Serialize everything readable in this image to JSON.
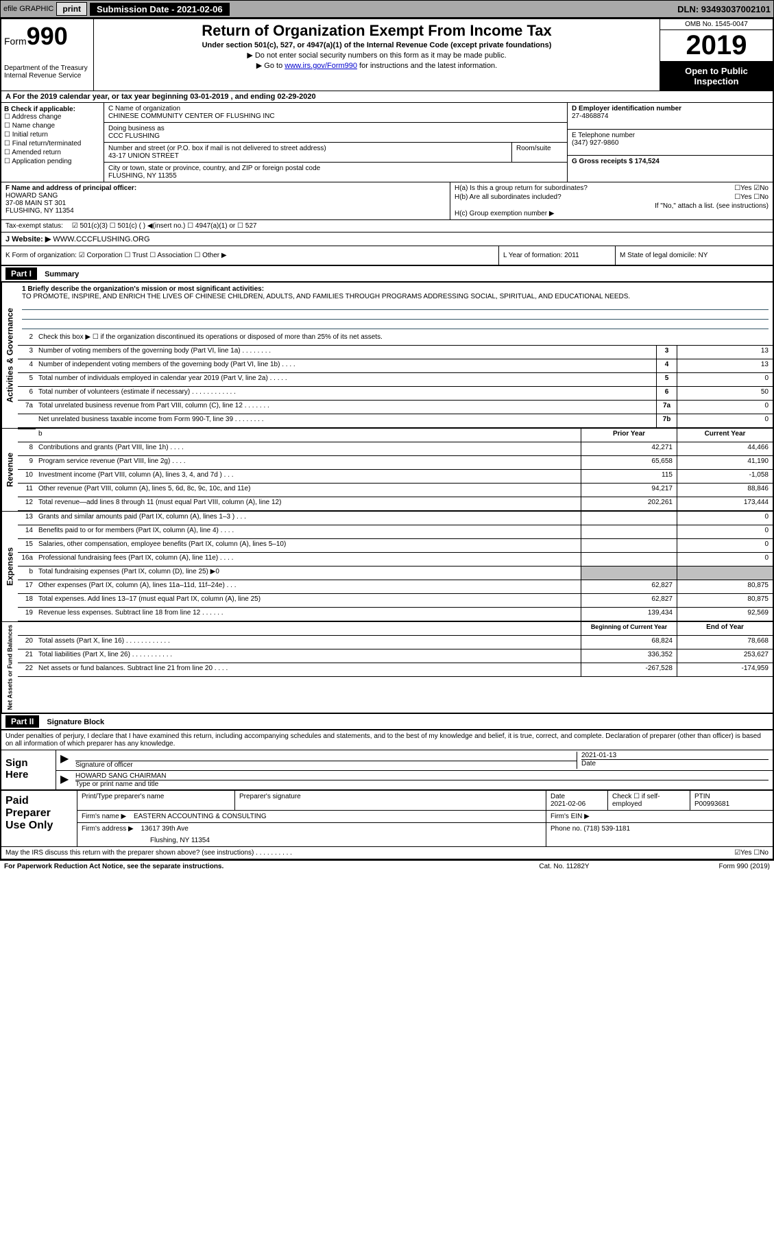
{
  "header_bar": {
    "efile": "efile GRAPHIC",
    "print": "print",
    "submission_label": "Submission Date - 2021-02-06",
    "dln": "DLN: 93493037002101"
  },
  "top": {
    "form_label": "Form",
    "form_num": "990",
    "dept": "Department of the Treasury\nInternal Revenue Service",
    "title": "Return of Organization Exempt From Income Tax",
    "subtitle": "Under section 501(c), 527, or 4947(a)(1) of the Internal Revenue Code (except private foundations)",
    "note1": "▶ Do not enter social security numbers on this form as it may be made public.",
    "note2_pre": "▶ Go to ",
    "note2_link": "www.irs.gov/Form990",
    "note2_post": " for instructions and the latest information.",
    "omb": "OMB No. 1545-0047",
    "year": "2019",
    "open": "Open to Public Inspection"
  },
  "row_a": "A For the 2019 calendar year, or tax year beginning 03-01-2019   , and ending 02-29-2020",
  "col_b": {
    "label": "B Check if applicable:",
    "items": [
      "☐ Address change",
      "☐ Name change",
      "☐ Initial return",
      "☐ Final return/terminated",
      "☐ Amended return",
      "☐ Application pending"
    ]
  },
  "col_c": {
    "name_label": "C Name of organization",
    "name": "CHINESE COMMUNITY CENTER OF FLUSHING INC",
    "dba_label": "Doing business as",
    "dba": "CCC FLUSHING",
    "street_label": "Number and street (or P.O. box if mail is not delivered to street address)",
    "street": "43-17 UNION STREET",
    "room_label": "Room/suite",
    "city_label": "City or town, state or province, country, and ZIP or foreign postal code",
    "city": "FLUSHING, NY  11355"
  },
  "col_d": {
    "label": "D Employer identification number",
    "value": "27-4868874"
  },
  "col_e": {
    "label": "E Telephone number",
    "value": "(347) 927-9860"
  },
  "col_g": {
    "label": "G Gross receipts $ 174,524"
  },
  "col_f": {
    "label": "F  Name and address of principal officer:",
    "name": "HOWARD SANG",
    "addr1": "37-08 MAIN ST 301",
    "addr2": "FLUSHING, NY  11354"
  },
  "col_h": {
    "ha": "H(a)  Is this a group return for subordinates?",
    "ha_ans": "☐Yes ☑No",
    "hb": "H(b)  Are all subordinates included?",
    "hb_ans": "☐Yes ☐No",
    "hb_note": "If \"No,\" attach a list. (see instructions)",
    "hc": "H(c)  Group exemption number ▶"
  },
  "tax_status": {
    "label": "Tax-exempt status:",
    "opts": "☑ 501(c)(3)   ☐ 501(c) (  ) ◀(insert no.)   ☐ 4947(a)(1) or   ☐ 527"
  },
  "website": {
    "label": "J   Website: ▶",
    "value": "WWW.CCCFLUSHING.ORG"
  },
  "row_k": {
    "k": "K Form of organization:  ☑ Corporation  ☐ Trust  ☐ Association  ☐ Other ▶",
    "l": "L Year of formation: 2011",
    "m": "M State of legal domicile: NY"
  },
  "part1": {
    "hdr": "Part I",
    "title": "Summary",
    "line1_label": "1  Briefly describe the organization's mission or most significant activities:",
    "mission": "TO PROMOTE, INSPIRE, AND ENRICH THE LIVES OF CHINESE CHILDREN, ADULTS, AND FAMILIES THROUGH PROGRAMS ADDRESSING SOCIAL, SPIRITUAL, AND EDUCATIONAL NEEDS.",
    "line2": "Check this box ▶ ☐  if the organization discontinued its operations or disposed of more than 25% of its net assets.",
    "governance": [
      {
        "n": "3",
        "d": "Number of voting members of the governing body (Part VI, line 1a)   .    .    .    .    .    .    .    .",
        "b": "3",
        "v": "13"
      },
      {
        "n": "4",
        "d": "Number of independent voting members of the governing body (Part VI, line 1b)   .    .    .    .",
        "b": "4",
        "v": "13"
      },
      {
        "n": "5",
        "d": "Total number of individuals employed in calendar year 2019 (Part V, line 2a)  .    .    .    .    .",
        "b": "5",
        "v": "0"
      },
      {
        "n": "6",
        "d": "Total number of volunteers (estimate if necessary)    .    .    .    .    .    .    .    .    .    .    .    .",
        "b": "6",
        "v": "50"
      },
      {
        "n": "7a",
        "d": "Total unrelated business revenue from Part VIII, column (C), line 12   .    .    .    .    .    .    .",
        "b": "7a",
        "v": "0"
      },
      {
        "n": "",
        "d": "Net unrelated business taxable income from Form 990-T, line 39   .    .    .    .    .    .    .    .",
        "b": "7b",
        "v": "0"
      }
    ],
    "col_hdr_prior": "Prior Year",
    "col_hdr_current": "Current Year",
    "revenue": [
      {
        "n": "8",
        "d": "Contributions and grants (Part VIII, line 1h)   .    .    .    .",
        "p": "42,271",
        "c": "44,466"
      },
      {
        "n": "9",
        "d": "Program service revenue (Part VIII, line 2g)   .    .    .    .",
        "p": "65,658",
        "c": "41,190"
      },
      {
        "n": "10",
        "d": "Investment income (Part VIII, column (A), lines 3, 4, and 7d )   .    .    .",
        "p": "115",
        "c": "-1,058"
      },
      {
        "n": "11",
        "d": "Other revenue (Part VIII, column (A), lines 5, 6d, 8c, 9c, 10c, and 11e)",
        "p": "94,217",
        "c": "88,846"
      },
      {
        "n": "12",
        "d": "Total revenue—add lines 8 through 11 (must equal Part VIII, column (A), line 12)",
        "p": "202,261",
        "c": "173,444"
      }
    ],
    "expenses": [
      {
        "n": "13",
        "d": "Grants and similar amounts paid (Part IX, column (A), lines 1–3 )  .    .    .",
        "p": "",
        "c": "0"
      },
      {
        "n": "14",
        "d": "Benefits paid to or for members (Part IX, column (A), line 4)  .    .    .    .",
        "p": "",
        "c": "0"
      },
      {
        "n": "15",
        "d": "Salaries, other compensation, employee benefits (Part IX, column (A), lines 5–10)",
        "p": "",
        "c": "0"
      },
      {
        "n": "16a",
        "d": "Professional fundraising fees (Part IX, column (A), line 11e)  .    .    .    .",
        "p": "",
        "c": "0"
      },
      {
        "n": "b",
        "d": "Total fundraising expenses (Part IX, column (D), line 25) ▶0",
        "p": "shaded",
        "c": "shaded"
      },
      {
        "n": "17",
        "d": "Other expenses (Part IX, column (A), lines 11a–11d, 11f–24e)   .    .    .",
        "p": "62,827",
        "c": "80,875"
      },
      {
        "n": "18",
        "d": "Total expenses. Add lines 13–17 (must equal Part IX, column (A), line 25)",
        "p": "62,827",
        "c": "80,875"
      },
      {
        "n": "19",
        "d": "Revenue less expenses. Subtract line 18 from line 12  .    .    .    .    .    .",
        "p": "139,434",
        "c": "92,569"
      }
    ],
    "col_hdr_begin": "Beginning of Current Year",
    "col_hdr_end": "End of Year",
    "netassets": [
      {
        "n": "20",
        "d": "Total assets (Part X, line 16)  .    .    .    .    .    .    .    .    .    .    .    .",
        "p": "68,824",
        "c": "78,668"
      },
      {
        "n": "21",
        "d": "Total liabilities (Part X, line 26)  .    .    .    .    .    .    .    .    .    .    .",
        "p": "336,352",
        "c": "253,627"
      },
      {
        "n": "22",
        "d": "Net assets or fund balances. Subtract line 21 from line 20  .    .    .    .",
        "p": "-267,528",
        "c": "-174,959"
      }
    ]
  },
  "side_labels": {
    "gov": "Activities & Governance",
    "rev": "Revenue",
    "exp": "Expenses",
    "net": "Net Assets or Fund Balances"
  },
  "part2": {
    "hdr": "Part II",
    "title": "Signature Block",
    "decl": "Under penalties of perjury, I declare that I have examined this return, including accompanying schedules and statements, and to the best of my knowledge and belief, it is true, correct, and complete. Declaration of preparer (other than officer) is based on all information of which preparer has any knowledge."
  },
  "sign": {
    "label": "Sign Here",
    "sig_label": "Signature of officer",
    "date": "2021-01-13",
    "date_label": "Date",
    "name": "HOWARD SANG CHAIRMAN",
    "name_label": "Type or print name and title"
  },
  "paid": {
    "label": "Paid Preparer Use Only",
    "h1": "Print/Type preparer's name",
    "h2": "Preparer's signature",
    "h3": "Date",
    "h3v": "2021-02-06",
    "h4": "Check ☐  if self-employed",
    "h5": "PTIN",
    "h5v": "P00993681",
    "firm_label": "Firm's name     ▶",
    "firm": "EASTERN ACCOUNTING & CONSULTING",
    "ein_label": "Firm's EIN ▶",
    "addr_label": "Firm's address ▶",
    "addr1": "13617 39th Ave",
    "addr2": "Flushing, NY  11354",
    "phone_label": "Phone no. (718) 539-1181"
  },
  "footer": {
    "discuss": "May the IRS discuss this return with the preparer shown above? (see instructions)   .    .    .    .    .    .    .    .    .    .",
    "discuss_ans": "☑Yes  ☐No",
    "pra": "For Paperwork Reduction Act Notice, see the separate instructions.",
    "cat": "Cat. No. 11282Y",
    "form": "Form 990 (2019)"
  }
}
